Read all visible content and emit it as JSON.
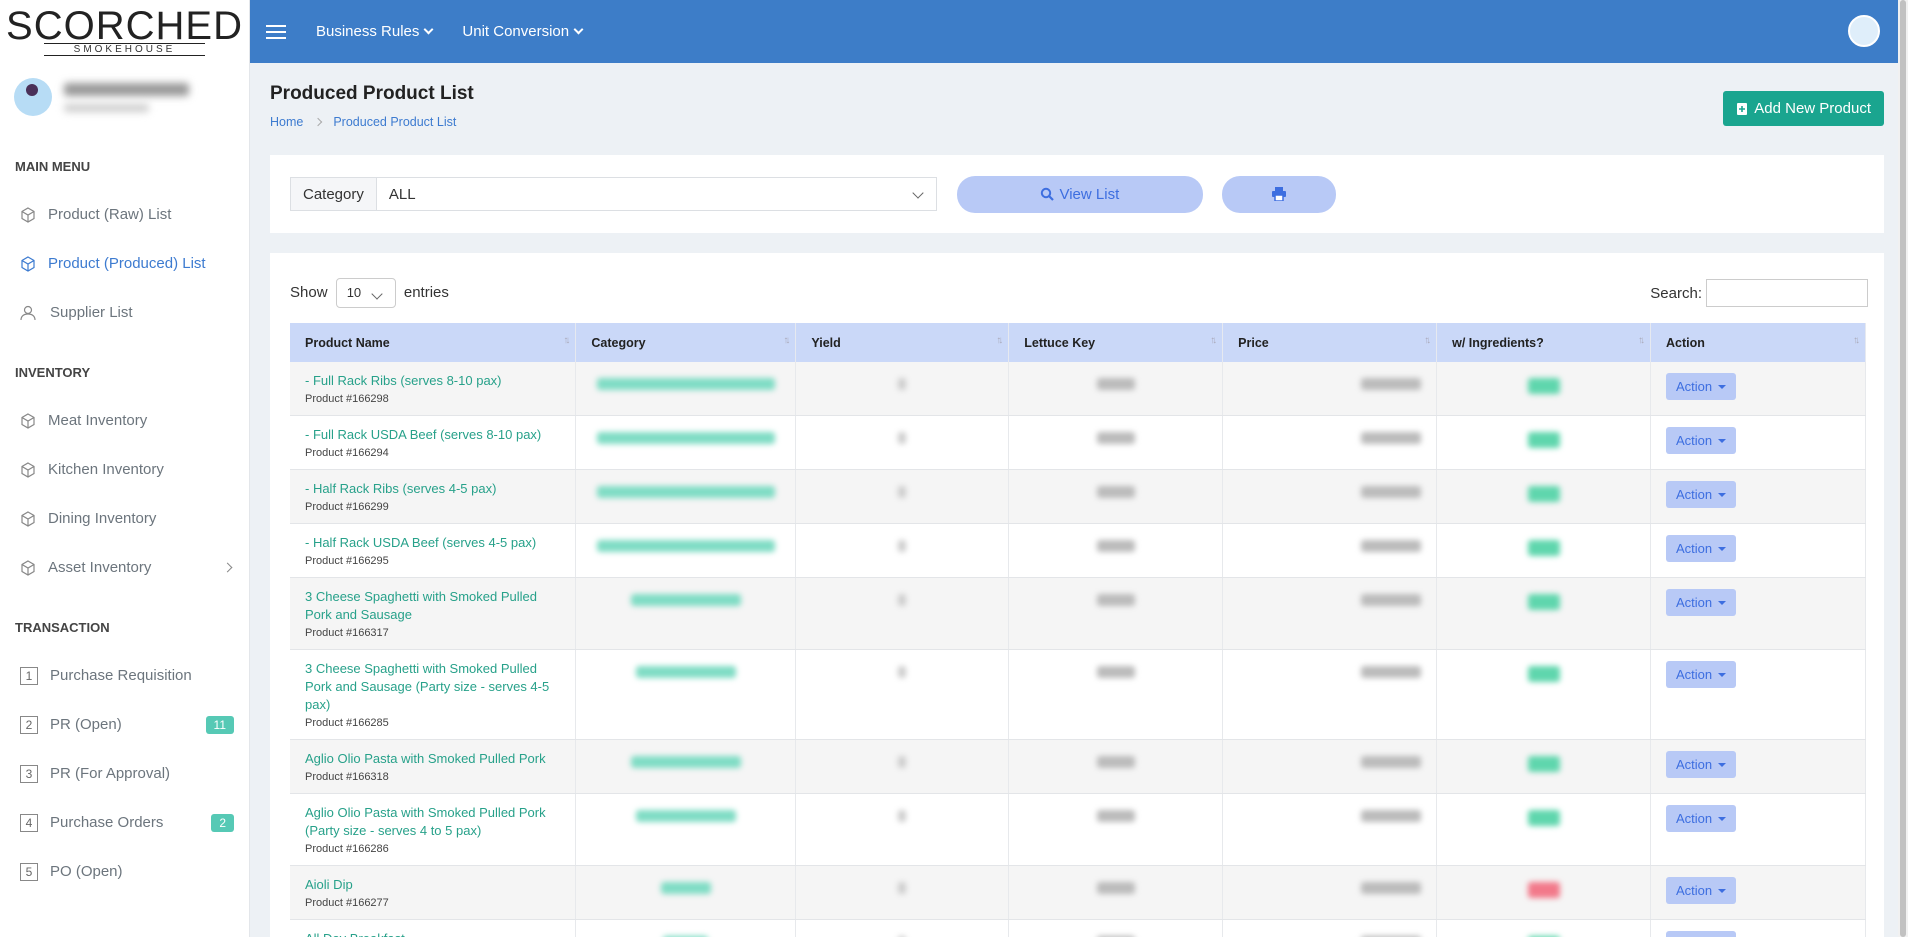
{
  "brand": {
    "name": "SCORCHED",
    "sub": "SMOKEHOUSE"
  },
  "nav": {
    "menus": [
      "Business Rules",
      "Unit Conversion"
    ]
  },
  "sidebar": {
    "sections": [
      {
        "title": "MAIN MENU",
        "items": [
          {
            "label": "Product (Raw) List"
          },
          {
            "label": "Product (Produced) List",
            "active": true
          },
          {
            "label": "Supplier List"
          }
        ]
      },
      {
        "title": "INVENTORY",
        "items": [
          {
            "label": "Meat Inventory"
          },
          {
            "label": "Kitchen Inventory"
          },
          {
            "label": "Dining Inventory"
          },
          {
            "label": "Asset Inventory",
            "submenu": true
          }
        ]
      },
      {
        "title": "TRANSACTION",
        "items": [
          {
            "label": "Purchase Requisition",
            "icon": "1"
          },
          {
            "label": "PR (Open)",
            "icon": "2",
            "badge": 11
          },
          {
            "label": "PR (For Approval)",
            "icon": "3"
          },
          {
            "label": "Purchase Orders",
            "icon": "4",
            "badge": 2
          },
          {
            "label": "PO (Open)",
            "icon": "5"
          }
        ]
      }
    ]
  },
  "page": {
    "title": "Produced Product List",
    "breadcrumb": [
      "Home",
      "Produced Product List"
    ],
    "add_button": "Add New Product"
  },
  "filter": {
    "label": "Category",
    "value": "ALL",
    "view_button": "View List"
  },
  "table": {
    "show_label": "Show",
    "entries_value": "10",
    "entries_label": "entries",
    "search_label": "Search:",
    "action_label": "Action",
    "columns": [
      "Product Name",
      "Category",
      "Yield",
      "Lettuce Key",
      "Price",
      "w/ Ingredients?",
      "Action"
    ],
    "rows": [
      {
        "name": "- Full Rack Ribs (serves 8-10 pax)",
        "code": "Product #166298",
        "ingredients": true
      },
      {
        "name": "- Full Rack USDA Beef (serves 8-10 pax)",
        "code": "Product #166294",
        "ingredients": true
      },
      {
        "name": "- Half Rack Ribs (serves 4-5 pax)",
        "code": "Product #166299",
        "ingredients": true
      },
      {
        "name": "- Half Rack USDA Beef (serves 4-5 pax)",
        "code": "Product #166295",
        "ingredients": true
      },
      {
        "name": "3 Cheese Spaghetti with Smoked Pulled Pork and Sausage",
        "code": "Product #166317",
        "ingredients": true
      },
      {
        "name": "3 Cheese Spaghetti with Smoked Pulled Pork and Sausage (Party size - serves 4-5 pax)",
        "code": "Product #166285",
        "ingredients": true
      },
      {
        "name": "Aglio Olio Pasta with Smoked Pulled Pork",
        "code": "Product #166318",
        "ingredients": true
      },
      {
        "name": "Aglio Olio Pasta with Smoked Pulled Pork (Party size - serves 4 to 5 pax)",
        "code": "Product #166286",
        "ingredients": true
      },
      {
        "name": "Aioli Dip",
        "code": "Product #166277",
        "ingredients": false
      },
      {
        "name": "All Day Breakfast",
        "ingredients": true
      }
    ]
  }
}
